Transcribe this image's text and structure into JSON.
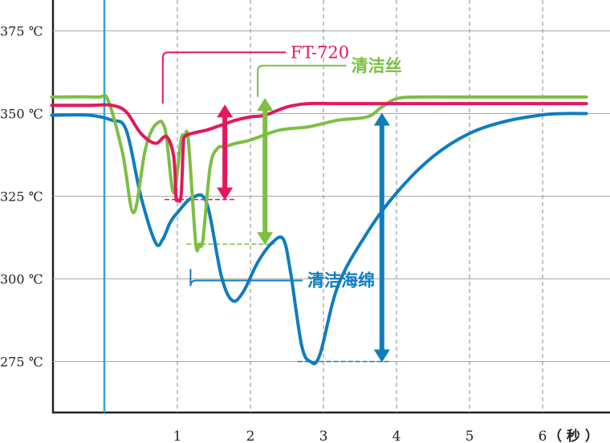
{
  "chart_data": {
    "type": "line",
    "title": "",
    "xlabel": "",
    "x_unit_label": "（ 秒 ）",
    "ylabel": "",
    "xlim": [
      -0.72,
      6.6
    ],
    "ylim": [
      258,
      384
    ],
    "y_ticks": [
      {
        "value": 375,
        "label": "375 ℃"
      },
      {
        "value": 350,
        "label": "350 ℃"
      },
      {
        "value": 325,
        "label": "325 ℃"
      },
      {
        "value": 300,
        "label": "300 ℃"
      },
      {
        "value": 275,
        "label": "275 ℃"
      }
    ],
    "x_ticks": [
      {
        "value": 1,
        "label": "1"
      },
      {
        "value": 2,
        "label": "2"
      },
      {
        "value": 3,
        "label": "3"
      },
      {
        "value": 4,
        "label": "4"
      },
      {
        "value": 5,
        "label": "5"
      },
      {
        "value": 6,
        "label": "6"
      }
    ],
    "grid": true,
    "start_marker_x": 0,
    "series": [
      {
        "name": "清洁海绵",
        "color": "#0f7cc0",
        "x": [
          -0.72,
          -0.2,
          0.1,
          0.3,
          0.5,
          0.7,
          0.8,
          0.9,
          1.0,
          1.2,
          1.4,
          1.6,
          1.75,
          1.9,
          2.1,
          2.3,
          2.45,
          2.55,
          2.7,
          2.82,
          2.95,
          3.2,
          3.6,
          4.0,
          4.5,
          5.0,
          5.5,
          6.0,
          6.3,
          6.6
        ],
        "values": [
          349.5,
          349.5,
          348,
          345,
          325,
          311,
          312,
          317,
          320,
          324.5,
          323,
          301,
          293.5,
          296,
          305,
          311,
          312,
          302,
          280,
          275,
          277,
          298,
          314,
          326,
          337,
          344,
          347.7,
          349.6,
          350,
          350
        ]
      },
      {
        "name": "清洁丝",
        "color": "#7cbf43",
        "x": [
          -0.72,
          -0.1,
          0.05,
          0.25,
          0.4,
          0.55,
          0.65,
          0.75,
          0.8,
          0.85,
          0.95,
          1.05,
          1.1,
          1.15,
          1.25,
          1.3,
          1.35,
          1.45,
          1.55,
          1.65,
          1.8,
          2.0,
          2.4,
          2.8,
          3.2,
          3.6,
          3.8,
          4.0,
          4.3,
          5.0,
          6.0,
          6.6
        ],
        "values": [
          355,
          355,
          354,
          338,
          320,
          338,
          345,
          347.5,
          347,
          343,
          326,
          342,
          343,
          342,
          311,
          310.5,
          312,
          334,
          339.5,
          340,
          341,
          342,
          345,
          346,
          348,
          349,
          352,
          354.5,
          355,
          355,
          355,
          355
        ]
      },
      {
        "name": "FT-720",
        "color": "#e4175f",
        "x": [
          -0.72,
          -0.2,
          0.1,
          0.3,
          0.5,
          0.7,
          0.85,
          0.95,
          0.98,
          1.0,
          1.05,
          1.08,
          1.1,
          1.2,
          1.4,
          1.6,
          1.8,
          2.0,
          2.2,
          2.5,
          2.8,
          3.2,
          4.0,
          5.0,
          6.0,
          6.6
        ],
        "values": [
          352.5,
          352.5,
          352.5,
          350.5,
          344,
          341,
          343,
          337,
          325,
          324,
          325,
          340,
          343,
          344,
          345,
          346.5,
          348,
          349,
          349.5,
          352,
          353,
          353,
          353,
          353,
          353,
          353
        ]
      }
    ],
    "annotations": [
      {
        "series": "FT-720",
        "label": "FT-720",
        "label_x": 2.55,
        "label_y": 368.5,
        "leader_x": 0.8,
        "leader_y": 353,
        "min": 324,
        "max": 352.5,
        "range_x": 1.65
      },
      {
        "series": "清洁丝",
        "label": "清洁丝",
        "label_x": 3.38,
        "label_y": 364.5,
        "leader_x": 2.1,
        "leader_y": 355,
        "min": 310.5,
        "max": 354.5,
        "range_x": 2.2
      },
      {
        "series": "清洁海绵",
        "label": "清洁海绵",
        "label_x": 2.78,
        "label_y": 299.5,
        "leader_x": 1.18,
        "leader_y": 303,
        "min": 275,
        "max": 350,
        "range_x": 3.8
      }
    ]
  }
}
